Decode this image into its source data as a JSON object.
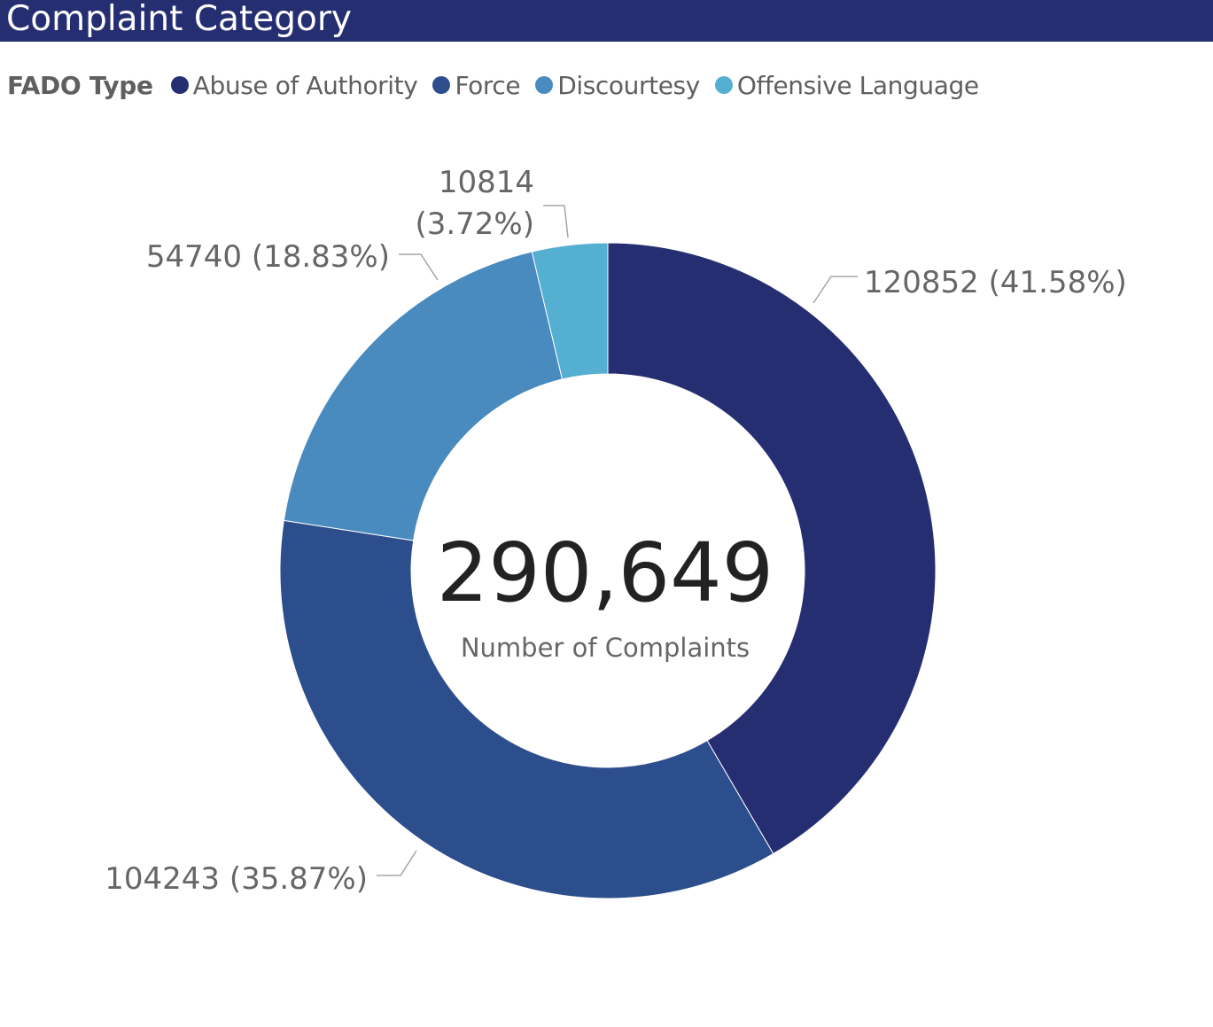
{
  "header": {
    "title": "Complaint Category"
  },
  "legend": {
    "title": "FADO Type",
    "items": [
      {
        "label": "Abuse of Authority",
        "color": "#262e72"
      },
      {
        "label": "Force",
        "color": "#2d4e8c"
      },
      {
        "label": "Discourtesy",
        "color": "#4a8bbf"
      },
      {
        "label": "Offensive Language",
        "color": "#55afd1"
      }
    ]
  },
  "chart_data": {
    "type": "pie",
    "variant": "donut",
    "legend_title": "FADO Type",
    "legend_position": "top-left",
    "categories": [
      "Abuse of Authority",
      "Force",
      "Discourtesy",
      "Offensive Language"
    ],
    "values": [
      120852,
      104243,
      54740,
      10814
    ],
    "percentages": [
      "41.58%",
      "35.87%",
      "18.83%",
      "3.72%"
    ],
    "colors": [
      "#262e72",
      "#2d4e8c",
      "#4a8bbf",
      "#55afd1"
    ],
    "data_labels": [
      [
        "120852 (41.58%)"
      ],
      [
        "104243 (35.87%)"
      ],
      [
        "54740 (18.83%)"
      ],
      [
        "10814",
        "(3.72%)"
      ]
    ],
    "center_value": "290,649",
    "center_caption": "Number of Complaints"
  }
}
